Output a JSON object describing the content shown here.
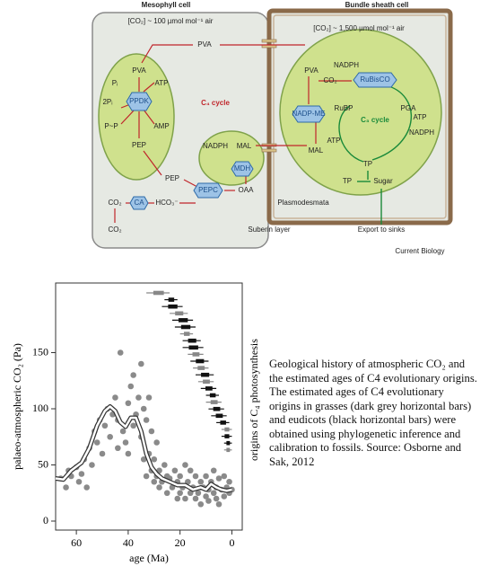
{
  "diagram": {
    "labels": [
      "Mesophyll cell",
      "Bundle sheath cell",
      "[CO₂] ~ 100 µmol mol⁻¹ air",
      "[CO₂] ~ 1,500 µmol mol⁻¹ air",
      "PVA",
      "PVA",
      "Pᵢ",
      "ATP",
      "2Pᵢ",
      "PPDK",
      "P~P",
      "AMP",
      "PEP",
      "C₄ cycle",
      "NADPH",
      "MAL",
      "MDH",
      "PEP",
      "PEPC",
      "OAA",
      "CO₂",
      "CA",
      "HCO₃⁻",
      "CO₂",
      "Plasmodesmata",
      "Suberin layer",
      "Export to sinks",
      "Current Biology",
      "PVA",
      "NADPH",
      "CO₂",
      "RuBisCO",
      "NADP-ME",
      "RuBP",
      "PGA",
      "C₃ cycle",
      "ATP",
      "NADPH",
      "ATP",
      "MAL",
      "TP",
      "TP",
      "Sugar"
    ]
  },
  "chart_data": {
    "type": "scatter",
    "xlabel": "age (Ma)",
    "ylabel": "palaeo-atmospheric CO₂ (Pa)",
    "y2label": "origins of C₄ photosynthesis",
    "xlim": [
      68,
      -4
    ],
    "xticks": [
      60,
      40,
      20,
      0
    ],
    "ylim": [
      -8,
      212
    ],
    "yticks": [
      0,
      50,
      100,
      150
    ],
    "points": {
      "color": "#8a8a8a",
      "x": [
        66,
        64,
        63,
        62,
        60,
        59,
        58,
        57,
        56,
        55,
        54,
        53,
        52,
        51,
        50,
        49,
        48,
        47,
        46,
        45,
        44,
        44,
        43,
        42,
        41,
        40,
        40,
        39,
        38,
        38,
        37,
        36,
        35,
        35,
        34,
        34,
        33,
        33,
        32,
        32,
        31,
        31,
        30,
        30,
        29,
        29,
        28,
        28,
        27,
        26,
        25,
        25,
        24,
        23,
        22,
        21,
        21,
        20,
        20,
        19,
        18,
        18,
        17,
        16,
        16,
        15,
        14,
        14,
        13,
        12,
        12,
        11,
        10,
        10,
        9,
        9,
        8,
        7,
        7,
        6,
        6,
        5,
        5,
        4,
        3,
        3,
        2,
        1,
        1,
        0
      ],
      "values": [
        38,
        30,
        45,
        40,
        48,
        35,
        42,
        55,
        30,
        65,
        50,
        80,
        70,
        90,
        60,
        85,
        100,
        75,
        95,
        110,
        65,
        90,
        150,
        80,
        70,
        105,
        60,
        120,
        85,
        130,
        95,
        110,
        140,
        75,
        100,
        55,
        90,
        40,
        60,
        110,
        45,
        80,
        35,
        55,
        40,
        70,
        45,
        30,
        35,
        50,
        25,
        40,
        38,
        30,
        45,
        35,
        20,
        25,
        40,
        30,
        50,
        20,
        35,
        25,
        45,
        30,
        20,
        40,
        25,
        35,
        15,
        30,
        22,
        40,
        28,
        18,
        35,
        25,
        45,
        20,
        30,
        38,
        15,
        28,
        22,
        40,
        30,
        25,
        35,
        28
      ]
    },
    "curve": {
      "color": "#333333",
      "x": [
        68,
        65,
        62,
        58,
        55,
        52,
        49,
        47,
        45,
        43,
        41,
        39,
        37,
        35,
        33,
        31,
        29,
        27,
        24,
        21,
        18,
        15,
        12,
        10,
        8,
        6,
        4,
        2,
        0
      ],
      "values": [
        38,
        37,
        45,
        52,
        65,
        85,
        98,
        102,
        98,
        88,
        84,
        92,
        92,
        80,
        60,
        48,
        42,
        38,
        35,
        32,
        32,
        28,
        30,
        28,
        33,
        30,
        28,
        27,
        28
      ]
    },
    "origins": [
      {
        "range": [
          33,
          24
        ],
        "color": "#888888"
      },
      {
        "range": [
          26,
          21
        ],
        "color": "#111111"
      },
      {
        "range": [
          27,
          19
        ],
        "color": "#111111"
      },
      {
        "range": [
          24,
          17
        ],
        "color": "#888888"
      },
      {
        "range": [
          23,
          15
        ],
        "color": "#111111"
      },
      {
        "range": [
          22,
          14
        ],
        "color": "#111111"
      },
      {
        "range": [
          20,
          15
        ],
        "color": "#888888"
      },
      {
        "range": [
          19,
          12
        ],
        "color": "#111111"
      },
      {
        "range": [
          19,
          11
        ],
        "color": "#111111"
      },
      {
        "range": [
          17,
          11
        ],
        "color": "#888888"
      },
      {
        "range": [
          16,
          9
        ],
        "color": "#111111"
      },
      {
        "range": [
          15,
          9
        ],
        "color": "#888888"
      },
      {
        "range": [
          14,
          7
        ],
        "color": "#111111"
      },
      {
        "range": [
          13,
          7
        ],
        "color": "#888888"
      },
      {
        "range": [
          12,
          6
        ],
        "color": "#111111"
      },
      {
        "range": [
          10,
          5
        ],
        "color": "#111111"
      },
      {
        "range": [
          10,
          4
        ],
        "color": "#888888"
      },
      {
        "range": [
          9,
          3
        ],
        "color": "#111111"
      },
      {
        "range": [
          8,
          2
        ],
        "color": "#111111"
      },
      {
        "range": [
          6,
          1
        ],
        "color": "#111111"
      },
      {
        "range": [
          4,
          0
        ],
        "color": "#888888"
      },
      {
        "range": [
          4,
          0
        ],
        "color": "#111111"
      },
      {
        "range": [
          3,
          0
        ],
        "color": "#111111"
      },
      {
        "range": [
          3,
          0
        ],
        "color": "#888888"
      }
    ]
  },
  "caption": "Geological history of atmospheric CO₂ and the estimated ages of C4 evolutionary origins. The estimated ages of C4 evolutionary origins in grasses (dark grey horizontal bars) and eudicots (black horizontal bars) were obtained using phylogenetic inference and calibration to fossils. Source: Osborne and Sak, 2012"
}
